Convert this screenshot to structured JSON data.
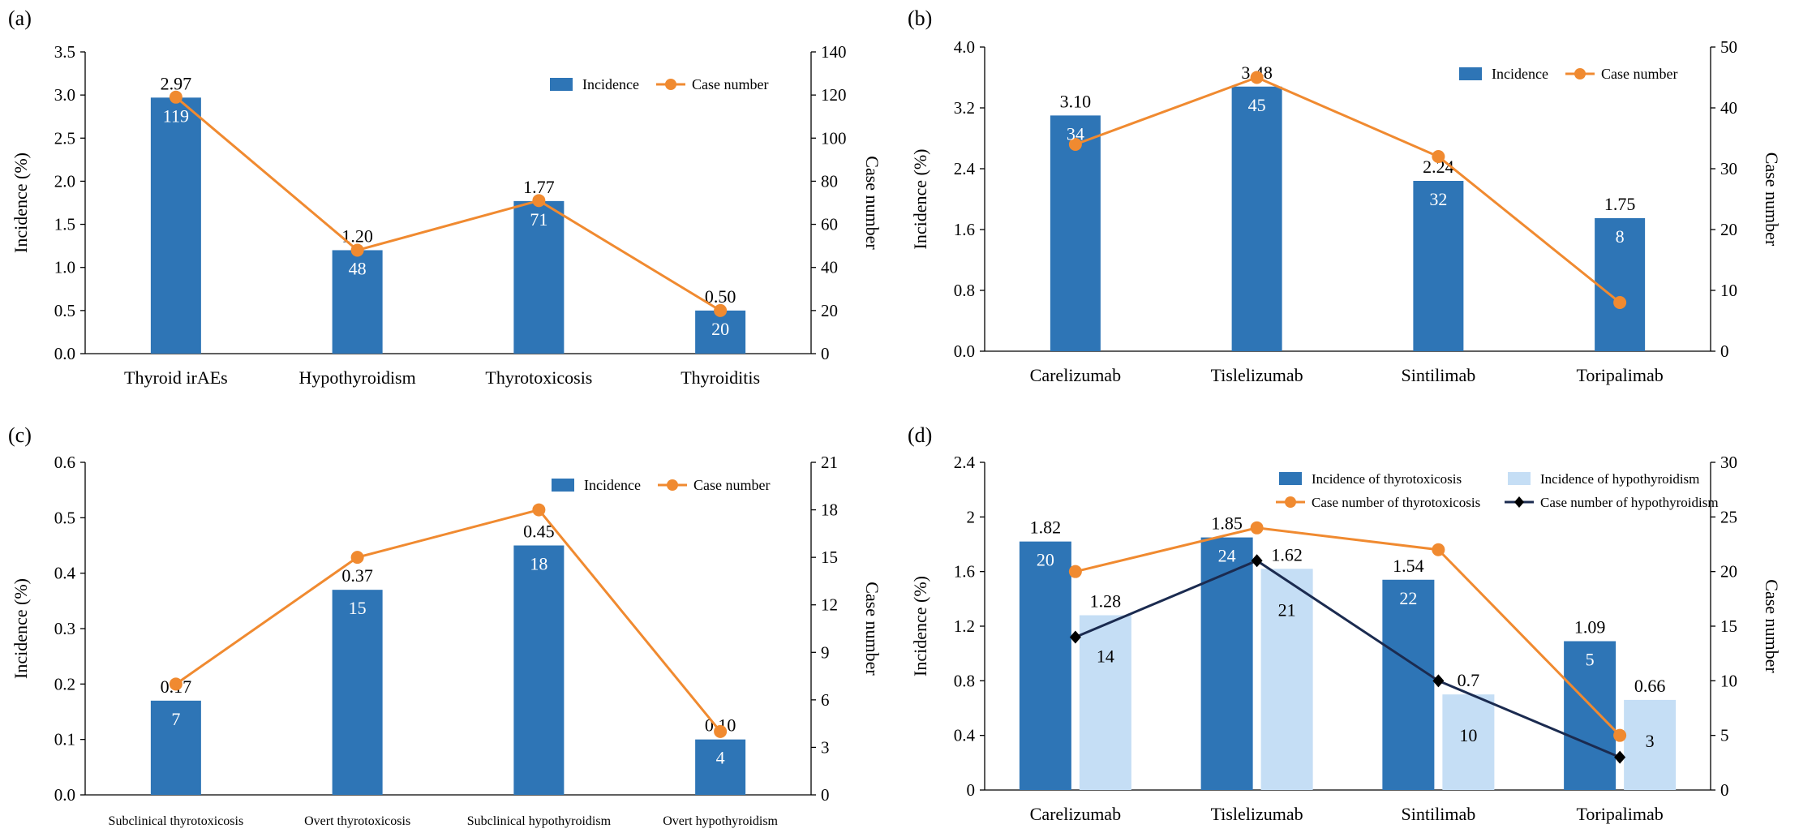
{
  "colors": {
    "bar_dark": "#2e75b6",
    "bar_light": "#c5def5",
    "line_orange": "#f08a30",
    "line_navy": "#1b2b50"
  },
  "chart_data": [
    {
      "panel_label": "(a)",
      "type": "bar",
      "categories": [
        "Thyroid irAEs",
        "Hypothyroidism",
        "Thyrotoxicosis",
        "Thyroiditis"
      ],
      "series": [
        {
          "name": "Incidence",
          "kind": "bar",
          "axis": "left",
          "color": "#2e75b6",
          "values": [
            2.97,
            1.2,
            1.77,
            0.5
          ],
          "labels": [
            "2.97",
            "1.20",
            "1.77",
            "0.50"
          ]
        },
        {
          "name": "Case number",
          "kind": "line",
          "axis": "right",
          "color": "#f08a30",
          "marker": "circle",
          "values": [
            119,
            48,
            71,
            20
          ],
          "labels": [
            "119",
            "48",
            "71",
            "20"
          ]
        }
      ],
      "ylabel": "Incidence (%)",
      "y2label": "Case number",
      "ylim": [
        0,
        3.5
      ],
      "y2lim": [
        0,
        140
      ],
      "yticks": [
        "0.0",
        "0.5",
        "1.0",
        "1.5",
        "2.0",
        "2.5",
        "3.0",
        "3.5"
      ],
      "y2ticks": [
        "0",
        "20",
        "40",
        "60",
        "80",
        "100",
        "120",
        "140"
      ],
      "legend": "top-right",
      "grid": false
    },
    {
      "panel_label": "(b)",
      "type": "bar",
      "categories": [
        "Carelizumab",
        "Tislelizumab",
        "Sintilimab",
        "Toripalimab"
      ],
      "series": [
        {
          "name": "Incidence",
          "kind": "bar",
          "axis": "left",
          "color": "#2e75b6",
          "values": [
            3.1,
            3.48,
            2.24,
            1.75
          ],
          "labels": [
            "3.10",
            "3.48",
            "2.24",
            "1.75"
          ]
        },
        {
          "name": "Case number",
          "kind": "line",
          "axis": "right",
          "color": "#f08a30",
          "marker": "circle",
          "values": [
            34,
            45,
            32,
            8
          ],
          "labels": [
            "34",
            "45",
            "32",
            "8"
          ]
        }
      ],
      "ylabel": "Incidence (%)",
      "y2label": "Case number",
      "ylim": [
        0,
        4.0
      ],
      "y2lim": [
        0,
        50
      ],
      "yticks": [
        "0.0",
        "0.8",
        "1.6",
        "2.4",
        "3.2",
        "4.0"
      ],
      "y2ticks": [
        "0",
        "10",
        "20",
        "30",
        "40",
        "50"
      ],
      "legend": "top-right",
      "grid": false
    },
    {
      "panel_label": "(c)",
      "type": "bar",
      "categories": [
        "Subclinical thyrotoxicosis",
        "Overt thyrotoxicosis",
        "Subclinical hypothyroidism",
        "Overt  hypothyroidism"
      ],
      "series": [
        {
          "name": "Incidence",
          "kind": "bar",
          "axis": "left",
          "color": "#2e75b6",
          "values": [
            0.17,
            0.37,
            0.45,
            0.1
          ],
          "labels": [
            "0.17",
            "0.37",
            "0.45",
            "0.10"
          ]
        },
        {
          "name": "Case number",
          "kind": "line",
          "axis": "right",
          "color": "#f08a30",
          "marker": "circle",
          "values": [
            7,
            15,
            18,
            4
          ],
          "labels": [
            "7",
            "15",
            "18",
            "4"
          ]
        }
      ],
      "ylabel": "Incidence (%)",
      "y2label": "Case number",
      "ylim": [
        0,
        0.6
      ],
      "y2lim": [
        0,
        21
      ],
      "yticks": [
        "0.0",
        "0.1",
        "0.2",
        "0.3",
        "0.4",
        "0.5",
        "0.6"
      ],
      "y2ticks": [
        "0",
        "3",
        "6",
        "9",
        "12",
        "15",
        "18",
        "21"
      ],
      "legend": "top-right",
      "grid": false
    },
    {
      "panel_label": "(d)",
      "type": "bar",
      "categories": [
        "Carelizumab",
        "Tislelizumab",
        "Sintilimab",
        "Toripalimab"
      ],
      "series": [
        {
          "name": "Incidence of thyrotoxicosis",
          "kind": "bar",
          "axis": "left",
          "color": "#2e75b6",
          "values": [
            1.82,
            1.85,
            1.54,
            1.09
          ],
          "labels": [
            "1.82",
            "1.85",
            "1.54",
            "1.09"
          ]
        },
        {
          "name": "Incidence of hypothyroidism",
          "kind": "bar",
          "axis": "left",
          "color": "#c5def5",
          "values": [
            1.28,
            1.62,
            0.7,
            0.66
          ],
          "labels": [
            "1.28",
            "1.62",
            "0.7",
            "0.66"
          ]
        },
        {
          "name": "Case number of thyrotoxicosis",
          "kind": "line",
          "axis": "right",
          "color": "#f08a30",
          "marker": "circle",
          "values": [
            20,
            24,
            22,
            5
          ],
          "labels": [
            "20",
            "24",
            "22",
            "5"
          ]
        },
        {
          "name": "Case number of hypothyroidism",
          "kind": "line",
          "axis": "right",
          "color": "#1b2b50",
          "marker": "diamond",
          "values": [
            14,
            21,
            10,
            3
          ],
          "labels": [
            "14",
            "21",
            "10",
            "3"
          ]
        }
      ],
      "ylabel": "Incidence (%)",
      "y2label": "Case number",
      "ylim": [
        0,
        2.4
      ],
      "y2lim": [
        0,
        30
      ],
      "yticks": [
        "0",
        "0.4",
        "0.8",
        "1.2",
        "1.6",
        "2",
        "2.4"
      ],
      "y2ticks": [
        "0",
        "5",
        "10",
        "15",
        "20",
        "25",
        "30"
      ],
      "legend": "top-right",
      "grid": false
    }
  ]
}
